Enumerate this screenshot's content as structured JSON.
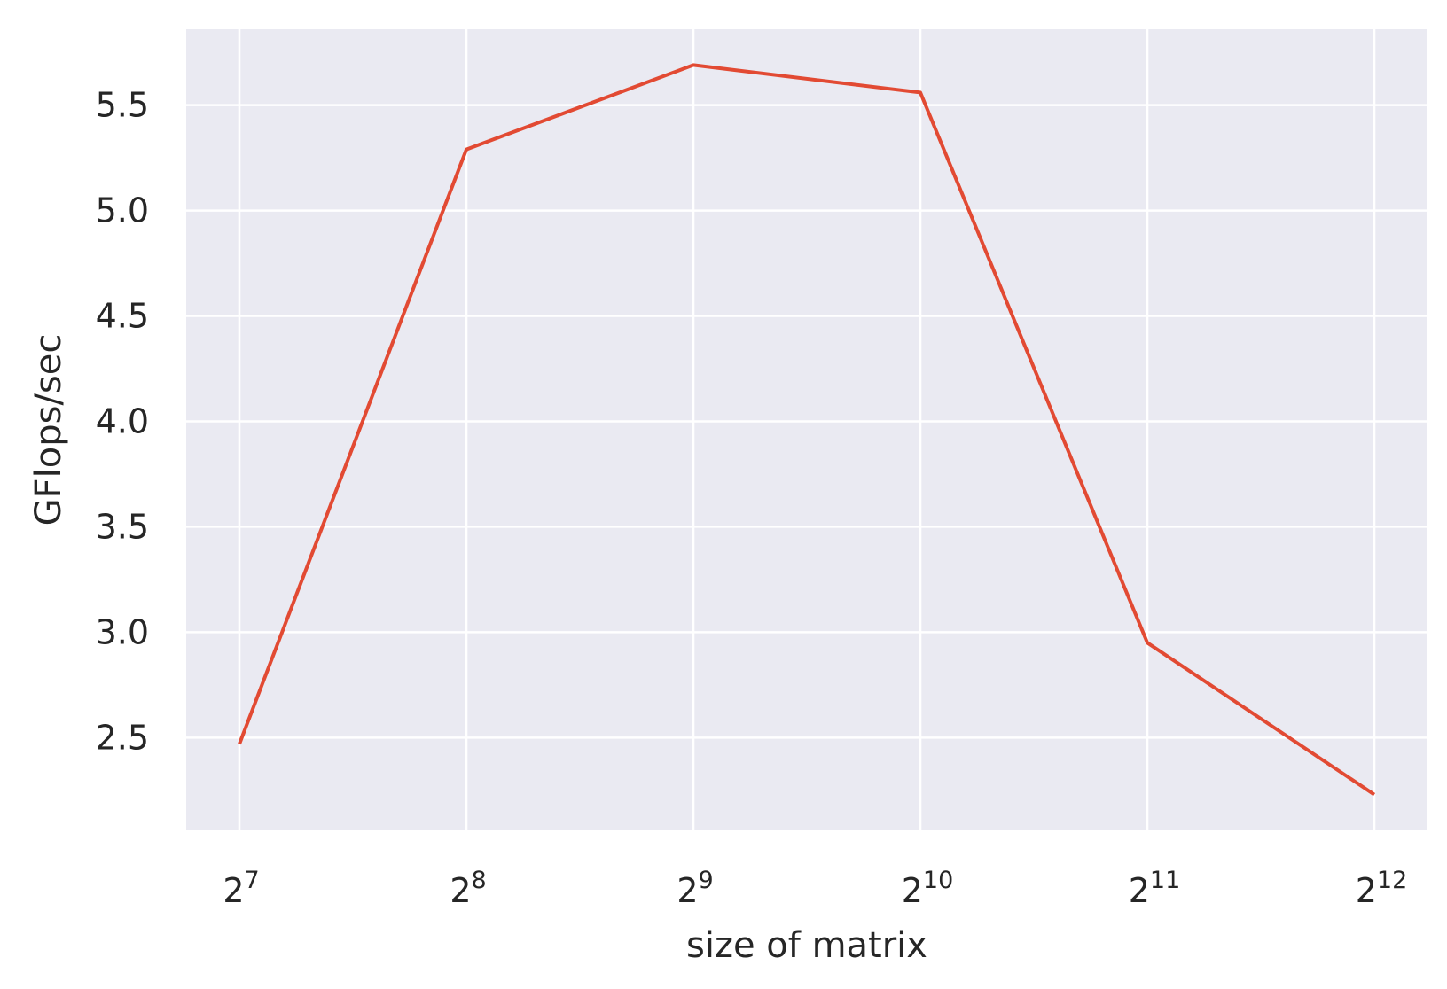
{
  "chart_data": {
    "type": "line",
    "title": "",
    "xlabel": "size of matrix",
    "ylabel": "GFlops/sec",
    "x_scale": "log2",
    "x": [
      128,
      256,
      512,
      1024,
      2048,
      4096
    ],
    "x_tick_labels": [
      {
        "base": "2",
        "exp": "7"
      },
      {
        "base": "2",
        "exp": "8"
      },
      {
        "base": "2",
        "exp": "9"
      },
      {
        "base": "2",
        "exp": "10"
      },
      {
        "base": "2",
        "exp": "11"
      },
      {
        "base": "2",
        "exp": "12"
      }
    ],
    "y_ticks": [
      "2.5",
      "3.0",
      "3.5",
      "4.0",
      "4.5",
      "5.0",
      "5.5"
    ],
    "ylim": [
      2.06,
      5.86
    ],
    "grid": true,
    "series": [
      {
        "values": [
          2.47,
          5.29,
          5.69,
          5.56,
          2.95,
          2.23
        ],
        "color": "#e24a33"
      }
    ],
    "background_color": "#eaeaf2",
    "grid_color": "#ffffff"
  }
}
